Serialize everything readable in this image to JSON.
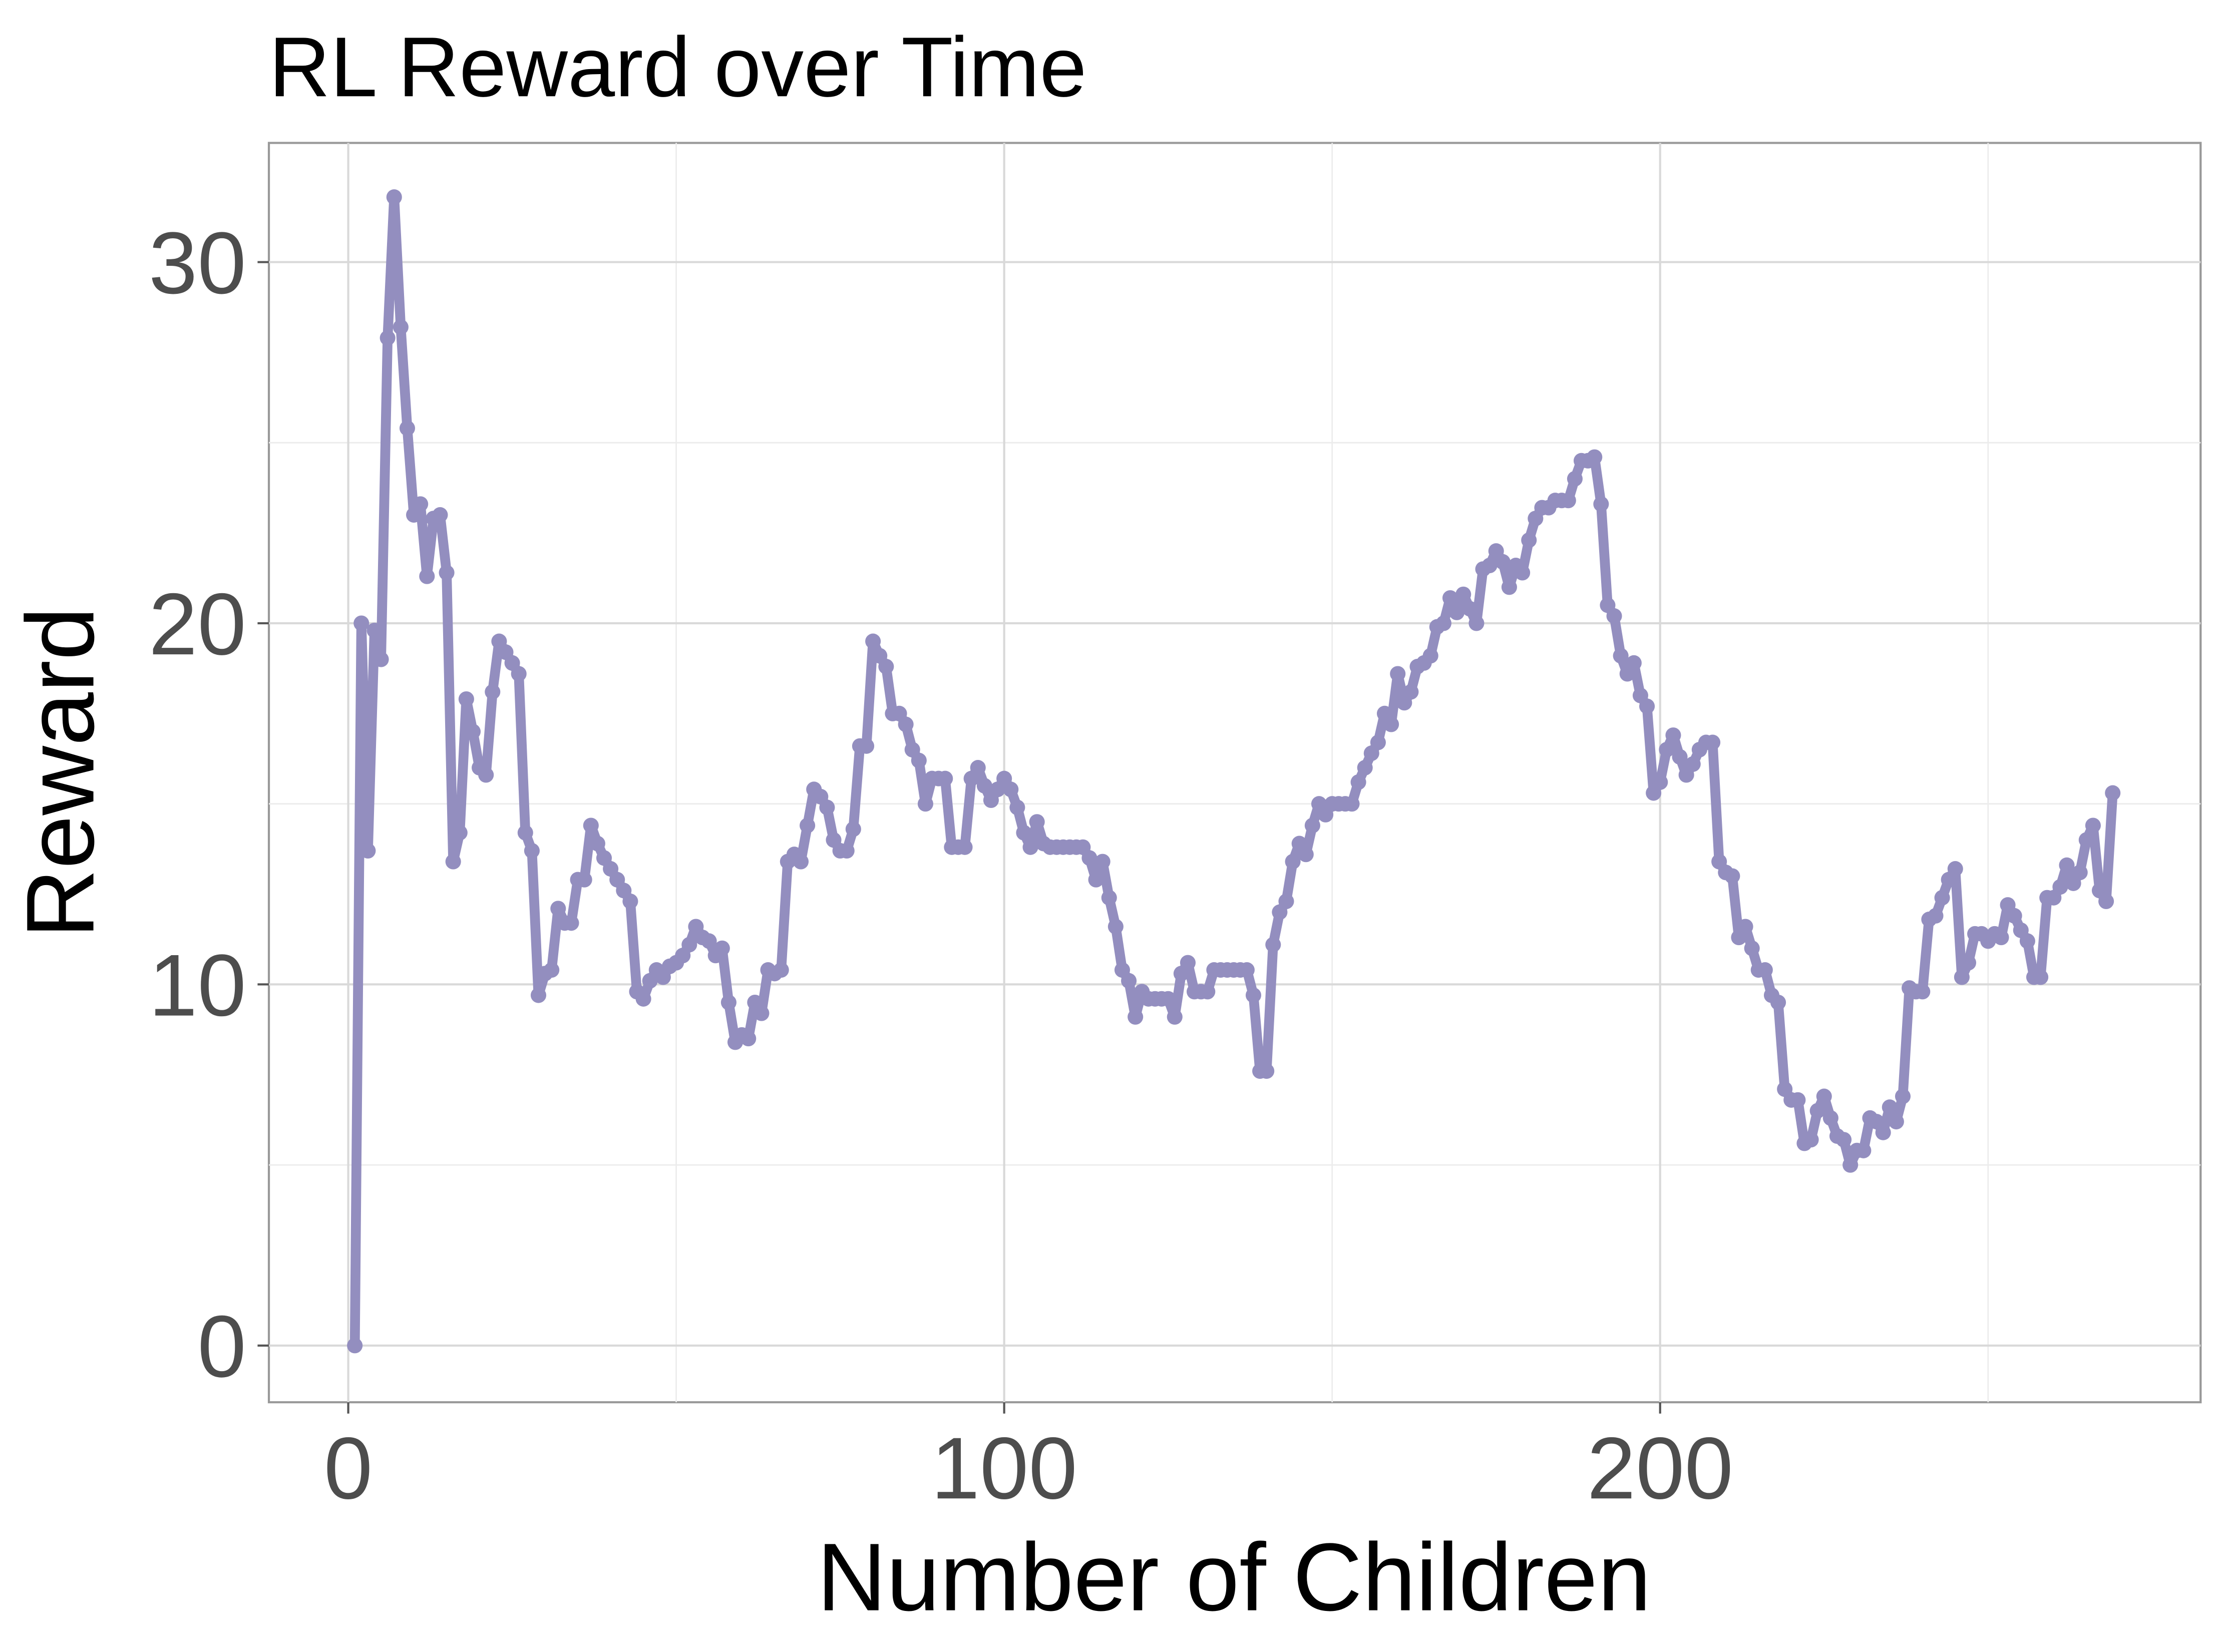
{
  "chart_data": {
    "type": "line",
    "title": "RL Reward over Time",
    "x_label": "Number of Children",
    "y_label": "Reward",
    "x": [
      1,
      2,
      3,
      4,
      5,
      6,
      7,
      8,
      9,
      10,
      11,
      12,
      13,
      14,
      15,
      16,
      17,
      18,
      19,
      20,
      21,
      22,
      23,
      24,
      25,
      26,
      27,
      28,
      29,
      30,
      31,
      32,
      33,
      34,
      35,
      36,
      37,
      38,
      39,
      40,
      41,
      42,
      43,
      44,
      45,
      46,
      47,
      48,
      49,
      50,
      51,
      52,
      53,
      54,
      55,
      56,
      57,
      58,
      59,
      60,
      61,
      62,
      63,
      64,
      65,
      66,
      67,
      68,
      69,
      70,
      71,
      72,
      73,
      74,
      75,
      76,
      77,
      78,
      79,
      80,
      81,
      82,
      83,
      84,
      85,
      86,
      87,
      88,
      89,
      90,
      91,
      92,
      93,
      94,
      95,
      96,
      97,
      98,
      99,
      100,
      101,
      102,
      103,
      104,
      105,
      106,
      107,
      108,
      109,
      110,
      111,
      112,
      113,
      114,
      115,
      116,
      117,
      118,
      119,
      120,
      121,
      122,
      123,
      124,
      125,
      126,
      127,
      128,
      129,
      130,
      131,
      132,
      133,
      134,
      135,
      136,
      137,
      138,
      139,
      140,
      141,
      142,
      143,
      144,
      145,
      146,
      147,
      148,
      149,
      150,
      151,
      152,
      153,
      154,
      155,
      156,
      157,
      158,
      159,
      160,
      161,
      162,
      163,
      164,
      165,
      166,
      167,
      168,
      169,
      170,
      171,
      172,
      173,
      174,
      175,
      176,
      177,
      178,
      179,
      180,
      181,
      182,
      183,
      184,
      185,
      186,
      187,
      188,
      189,
      190,
      191,
      192,
      193,
      194,
      195,
      196,
      197,
      198,
      199,
      200,
      201,
      202,
      203,
      204,
      205,
      206,
      207,
      208,
      209,
      210,
      211,
      212,
      213,
      214,
      215,
      216,
      217,
      218,
      219,
      220,
      221,
      222,
      223,
      224,
      225,
      226,
      227,
      228,
      229,
      230,
      231,
      232,
      233,
      234,
      235,
      236,
      237,
      238,
      239,
      240,
      241,
      242,
      243,
      244,
      245,
      246,
      247,
      248,
      249,
      250,
      251,
      252,
      253,
      254,
      255,
      256,
      257,
      258,
      259,
      260,
      261,
      262,
      263,
      264,
      265,
      266,
      267,
      268,
      269
    ],
    "series": [
      {
        "color": "#938ebf",
        "values": [
          0,
          20,
          13.7,
          19.8,
          19.0,
          27.9,
          31.8,
          28.2,
          25.4,
          23.0,
          23.3,
          21.3,
          22.9,
          23.0,
          21.4,
          13.4,
          14.2,
          17.9,
          17.0,
          16.0,
          15.8,
          18.1,
          19.5,
          19.2,
          18.9,
          18.6,
          14.2,
          13.7,
          9.7,
          10.3,
          10.4,
          12.1,
          11.7,
          11.7,
          12.9,
          12.9,
          14.4,
          13.9,
          13.5,
          13.2,
          12.9,
          12.6,
          12.3,
          9.8,
          9.6,
          10.1,
          10.4,
          10.2,
          10.5,
          10.6,
          10.8,
          11.1,
          11.6,
          11.3,
          11.2,
          10.8,
          11.0,
          9.5,
          8.4,
          8.6,
          8.5,
          9.5,
          9.2,
          10.4,
          10.3,
          10.4,
          13.4,
          13.6,
          13.4,
          14.4,
          15.4,
          15.2,
          14.9,
          14.0,
          13.7,
          13.7,
          14.3,
          16.6,
          16.6,
          19.5,
          19.1,
          18.8,
          17.5,
          17.5,
          17.2,
          16.5,
          16.2,
          15.0,
          15.7,
          15.7,
          15.7,
          13.8,
          13.8,
          13.8,
          15.7,
          16.0,
          15.5,
          15.1,
          15.4,
          15.7,
          15.4,
          14.9,
          14.2,
          13.8,
          14.5,
          13.9,
          13.8,
          13.8,
          13.8,
          13.8,
          13.8,
          13.8,
          13.5,
          12.9,
          13.4,
          12.4,
          11.6,
          10.4,
          10.1,
          9.1,
          9.8,
          9.6,
          9.6,
          9.6,
          9.6,
          9.1,
          10.3,
          10.6,
          9.8,
          9.8,
          9.8,
          10.4,
          10.4,
          10.4,
          10.4,
          10.4,
          10.4,
          9.7,
          7.6,
          7.6,
          11.1,
          12.0,
          12.3,
          13.4,
          13.9,
          13.6,
          14.4,
          15.0,
          14.7,
          15.0,
          15.0,
          15.0,
          15.0,
          15.6,
          16.0,
          16.4,
          16.7,
          17.5,
          17.2,
          18.6,
          17.8,
          18.1,
          18.8,
          18.9,
          19.1,
          19.9,
          20.0,
          20.7,
          20.3,
          20.8,
          20.4,
          20.0,
          21.5,
          21.6,
          22.0,
          21.7,
          21.0,
          21.6,
          21.4,
          22.3,
          22.9,
          23.2,
          23.2,
          23.4,
          23.4,
          23.4,
          24.0,
          24.5,
          24.5,
          24.6,
          23.3,
          20.5,
          20.2,
          19.1,
          18.6,
          18.9,
          18.0,
          17.7,
          15.3,
          15.6,
          16.5,
          16.9,
          16.3,
          15.8,
          16.1,
          16.5,
          16.7,
          16.7,
          13.4,
          13.1,
          13.0,
          11.3,
          11.6,
          11.0,
          10.4,
          10.4,
          9.7,
          9.5,
          7.1,
          6.8,
          6.8,
          5.6,
          5.7,
          6.5,
          6.9,
          6.3,
          5.8,
          5.7,
          5.0,
          5.4,
          5.4,
          6.3,
          6.2,
          5.9,
          6.6,
          6.2,
          6.9,
          9.9,
          9.8,
          9.8,
          11.8,
          11.9,
          12.4,
          12.9,
          13.2,
          10.2,
          10.6,
          11.4,
          11.4,
          11.2,
          11.4,
          11.3,
          12.2,
          11.9,
          11.5,
          11.2,
          10.2,
          10.2,
          12.4,
          12.4,
          12.7,
          13.3,
          12.8,
          13.1,
          14.0,
          14.4,
          12.6,
          12.3,
          15.3
        ]
      }
    ],
    "xlim": [
      -12.1,
      282.4
    ],
    "ylim": [
      -1.57,
      33.3
    ],
    "xticks": [
      0,
      100,
      200
    ],
    "yticks": [
      0,
      10,
      20,
      30
    ],
    "minor_xticks": [
      50,
      150,
      250
    ],
    "minor_yticks": [
      5,
      15,
      25
    ],
    "grid": true
  }
}
